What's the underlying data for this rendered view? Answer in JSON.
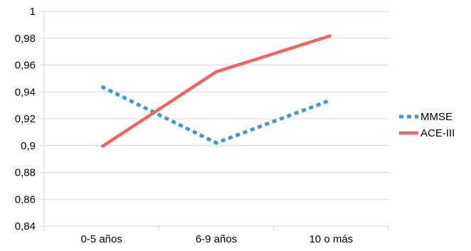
{
  "chart_data": {
    "type": "line",
    "categories": [
      "0-5 años",
      "6-9 años",
      "10 o más"
    ],
    "series": [
      {
        "name": "MMSE",
        "values": [
          0.944,
          0.902,
          0.934
        ],
        "color": "#3a9bc9",
        "style": "dashed"
      },
      {
        "name": "ACE-III",
        "values": [
          0.899,
          0.955,
          0.982
        ],
        "color": "#f06564",
        "style": "solid"
      }
    ],
    "ylim": [
      0.84,
      1
    ],
    "yticks": [
      0.84,
      0.86,
      0.88,
      0.9,
      0.92,
      0.94,
      0.96,
      0.98,
      1
    ],
    "ytick_labels": [
      "0,84",
      "0,86",
      "0,88",
      "0,9",
      "0,92",
      "0,94",
      "0,96",
      "0,98",
      "1"
    ],
    "grid": true,
    "legend_position": "right",
    "title": "",
    "xlabel": "",
    "ylabel": ""
  }
}
